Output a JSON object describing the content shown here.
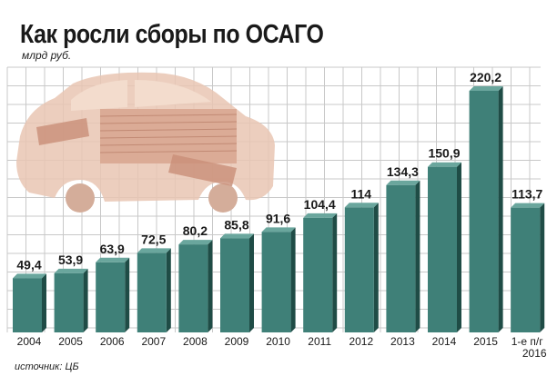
{
  "chart_data": {
    "type": "bar",
    "title": "Как росли сборы по ОСАГО",
    "subtitle": "млрд руб.",
    "source": "источник: ЦБ",
    "categories": [
      "2004",
      "2005",
      "2006",
      "2007",
      "2008",
      "2009",
      "2010",
      "2011",
      "2012",
      "2013",
      "2014",
      "2015",
      "1-е п/г 2016"
    ],
    "values": [
      49.4,
      53.9,
      63.9,
      72.5,
      80.2,
      85.8,
      91.6,
      104.4,
      114,
      134.3,
      150.9,
      220.2,
      113.7
    ],
    "value_labels": [
      "49,4",
      "53,9",
      "63,9",
      "72,5",
      "80,2",
      "85,8",
      "91,6",
      "104,4",
      "114",
      "134,3",
      "150,9",
      "220,2",
      "113,7"
    ],
    "grid": true,
    "colors": {
      "bar_front": "#3f8078",
      "bar_side": "#1f4c46",
      "bar_top": "#6aa69d",
      "grid_line": "#c8c8c8"
    }
  }
}
